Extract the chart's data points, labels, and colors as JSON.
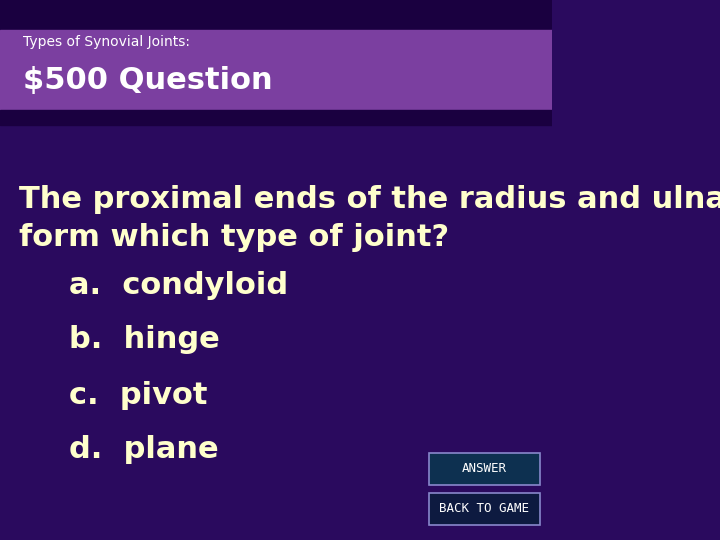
{
  "title_small": "Types of Synovial Joints:",
  "title_large": "$500 Question",
  "question": "The proximal ends of the radius and ulna\nform which type of joint?",
  "options": [
    "a.  condyloid",
    "b.  hinge",
    "c.  pivot",
    "d.  plane"
  ],
  "bg_main": "#2a0a5e",
  "bg_header_light": "#7b3fa0",
  "bg_header_dark": "#3d0d6e",
  "header_top_strip": "#1a0040",
  "header_bottom_strip": "#1a0040",
  "text_color_white": "#ffffff",
  "text_color_cream": "#ffffcc",
  "button_answer_bg": "#0d3050",
  "button_back_bg": "#0d1a40",
  "button_border": "#8888cc",
  "button_answer_text": "ANSWER",
  "button_back_text": "BACK TO GAME",
  "title_small_fontsize": 10,
  "title_large_fontsize": 22,
  "question_fontsize": 22,
  "option_fontsize": 22,
  "button_fontsize": 9
}
